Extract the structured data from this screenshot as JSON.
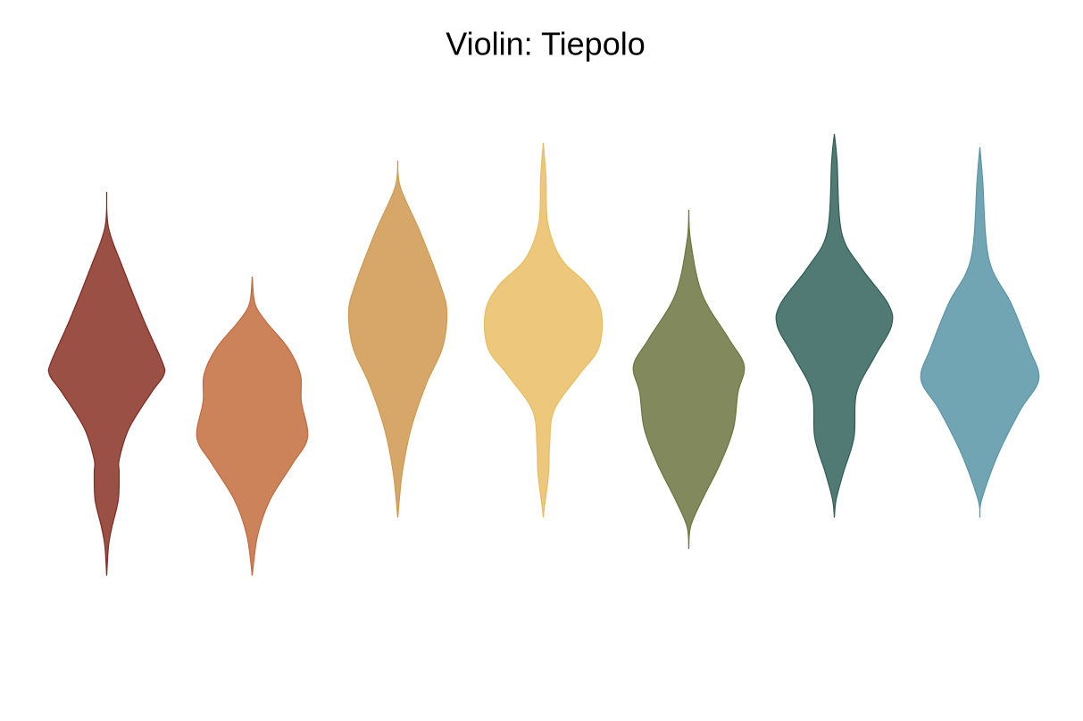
{
  "chart_data": {
    "type": "violin",
    "title": "Violin: Tiepolo",
    "ylim": [
      0,
      12
    ],
    "series": [
      {
        "color": "#9a5045",
        "edgecolor": "#7f2a22",
        "y": [
          9.7,
          8.9,
          8.0,
          6.8,
          5.9,
          5.6,
          5.2,
          4.4,
          3.7,
          3.4,
          2.8,
          2.2,
          1.76,
          1.1
        ],
        "density": [
          0,
          0.04,
          0.36,
          0.84,
          1.24,
          1.28,
          1.0,
          0.5,
          0.28,
          0.28,
          0.26,
          0.12,
          0.04,
          0
        ]
      },
      {
        "color": "#cc835a",
        "edgecolor": "#c06a40",
        "y": [
          7.8,
          7.2,
          6.8,
          6.2,
          5.6,
          5.0,
          4.2,
          3.6,
          2.8,
          2.0,
          1.1
        ],
        "density": [
          0,
          0.06,
          0.3,
          0.8,
          1.08,
          1.1,
          1.24,
          0.9,
          0.4,
          0.12,
          0
        ]
      },
      {
        "color": "#d7a769",
        "edgecolor": "#cf9a50",
        "y": [
          10.4,
          9.8,
          8.8,
          7.6,
          7.0,
          6.2,
          5.4,
          4.4,
          3.4,
          2.4
        ],
        "density": [
          0,
          0.06,
          0.5,
          0.96,
          1.1,
          1.0,
          0.64,
          0.3,
          0.1,
          0
        ]
      },
      {
        "color": "#ecc77c",
        "edgecolor": "#e8bd60",
        "y": [
          10.8,
          10.0,
          9.0,
          8.2,
          7.6,
          7.0,
          6.2,
          5.6,
          4.8,
          4.0,
          3.4,
          2.6,
          2.4
        ],
        "density": [
          0,
          0.06,
          0.1,
          0.4,
          1.0,
          1.3,
          1.24,
          0.8,
          0.24,
          0.14,
          0.12,
          0.02,
          0
        ]
      },
      {
        "color": "#828a5d",
        "edgecolor": "#6b7540",
        "y": [
          9.3,
          8.6,
          7.4,
          6.4,
          5.8,
          5.2,
          4.4,
          3.6,
          2.8,
          2.2,
          1.7
        ],
        "density": [
          0,
          0.04,
          0.3,
          0.9,
          1.24,
          1.1,
          1.0,
          0.7,
          0.3,
          0.04,
          0
        ]
      },
      {
        "color": "#527a74",
        "edgecolor": "#2f5d56",
        "y": [
          11,
          10.4,
          8.8,
          8.0,
          7.2,
          6.7,
          6.0,
          5.2,
          4.2,
          3.4,
          2.8,
          2.4
        ],
        "density": [
          0,
          0.06,
          0.16,
          0.6,
          1.2,
          1.28,
          0.9,
          0.5,
          0.44,
          0.2,
          0.04,
          0
        ]
      },
      {
        "color": "#72a5b3",
        "edgecolor": "#5a95a6",
        "y": [
          10.7,
          10.0,
          8.2,
          7.2,
          6.2,
          5.5,
          4.8,
          3.8,
          2.8,
          2.4
        ],
        "density": [
          0,
          0.06,
          0.2,
          0.7,
          1.1,
          1.32,
          0.9,
          0.4,
          0.04,
          0
        ]
      }
    ]
  }
}
